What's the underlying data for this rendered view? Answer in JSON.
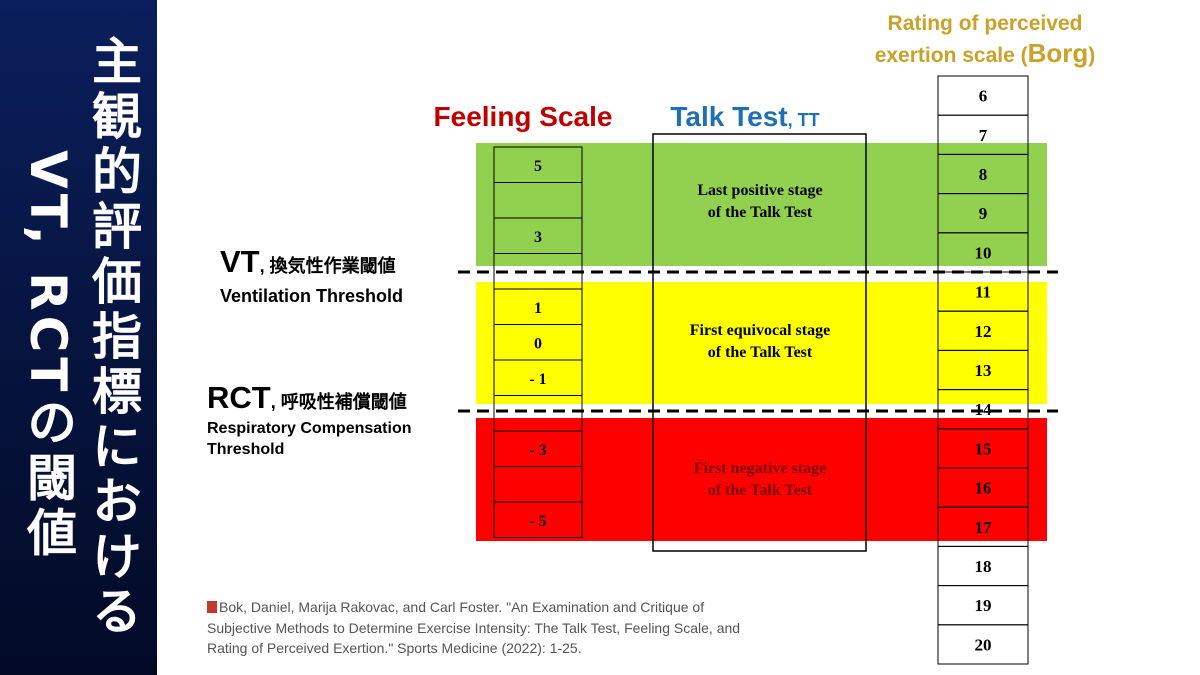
{
  "sidebar": {
    "title_lines": [
      "主観的評価指標における",
      "VT, RCTの閾値"
    ]
  },
  "thresholds": [
    {
      "abbr": "VT",
      "japanese": ", 換気性作業閾値",
      "english_lines": [
        "Ventilation Threshold"
      ]
    },
    {
      "abbr": "RCT",
      "japanese": ", 呼吸性補償閾値",
      "english_lines": [
        "Respiratory Compensation",
        "Threshold"
      ]
    }
  ],
  "feeling_scale": {
    "title": "Feeling Scale",
    "cells": [
      "5",
      null,
      "3",
      null,
      "1",
      "0",
      "- 1",
      null,
      "- 3",
      null,
      "- 5"
    ]
  },
  "talk_test": {
    "title": "Talk Test",
    "suffix": ", TT",
    "stages": [
      {
        "lines": [
          "Last positive stage",
          "of the Talk Test"
        ]
      },
      {
        "lines": [
          "First equivocal stage",
          "of the Talk Test"
        ]
      },
      {
        "lines": [
          "First negative stage",
          "of the Talk Test"
        ]
      }
    ]
  },
  "borg": {
    "title_line1": "Rating of perceived",
    "title_line2": "exertion scale (",
    "emphasis": "Borg",
    "close": ")",
    "values": [
      6,
      7,
      8,
      9,
      10,
      11,
      12,
      13,
      14,
      15,
      16,
      17,
      18,
      19,
      20
    ]
  },
  "citation": {
    "lines": [
      "Bok, Daniel, Marija Rakovac, and Carl Foster. \"An Examination and Critique of",
      "Subjective Methods to Determine Exercise Intensity: The Talk Test, Feeling Scale, and",
      "Rating of Perceived Exertion.\" Sports Medicine (2022): 1-25."
    ]
  }
}
